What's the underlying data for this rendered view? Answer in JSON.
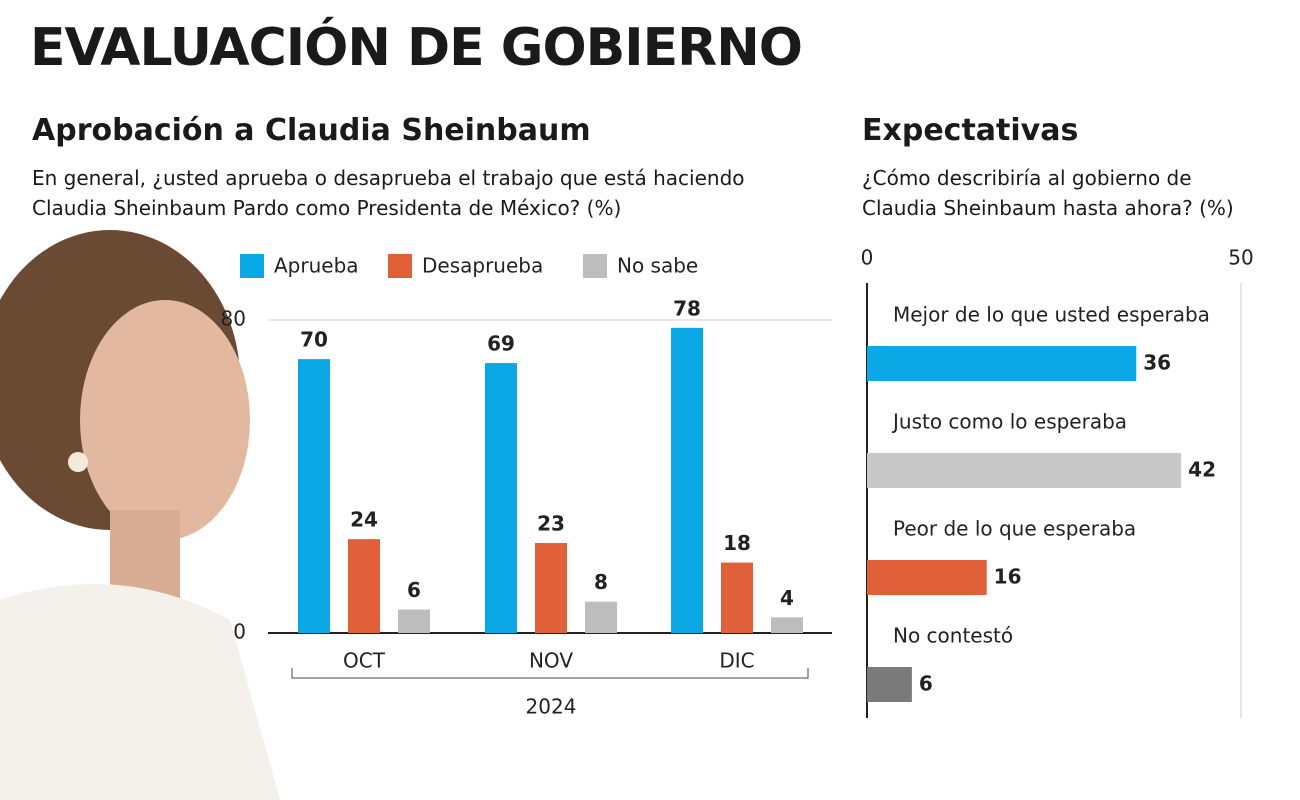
{
  "title": "EVALUACIÓN DE GOBIERNO",
  "chart_data": [
    {
      "type": "bar",
      "title": "Aprobación a Claudia Sheinbaum",
      "subtitle": "En general, ¿usted aprueba o desaprueba el trabajo que está haciendo Claudia Sheinbaum Pardo como Presidenta de México? (%)",
      "categories": [
        "OCT",
        "NOV",
        "DIC"
      ],
      "xlabel": "2024",
      "series": [
        {
          "name": "Aprueba",
          "color": "#0aa9e6",
          "values": [
            70,
            69,
            78
          ]
        },
        {
          "name": "Desaprueba",
          "color": "#e0603a",
          "values": [
            24,
            23,
            18
          ]
        },
        {
          "name": "No sabe",
          "color": "#bdbdbd",
          "values": [
            6,
            8,
            4
          ]
        }
      ],
      "ylim": [
        0,
        80
      ],
      "yticks": [
        0,
        80
      ],
      "grid": true,
      "legend": "top"
    },
    {
      "type": "barh",
      "title": "Expectativas",
      "subtitle": "¿Cómo describiría al gobierno de Claudia Sheinbaum hasta ahora? (%)",
      "categories": [
        "Mejor de lo que usted esperaba",
        "Justo como lo esperaba",
        "Peor de lo que esperaba",
        "No contestó"
      ],
      "values": [
        36,
        42,
        16,
        6
      ],
      "colors": [
        "#0aa9e6",
        "#c8c8c8",
        "#e0603a",
        "#7a7a7a"
      ],
      "xlim": [
        0,
        50
      ],
      "xticks": [
        0,
        50
      ],
      "grid": true
    }
  ]
}
